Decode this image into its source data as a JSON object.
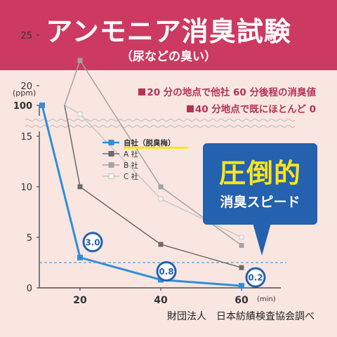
{
  "header": {
    "title": "アンモニア消臭試験",
    "subtitle": "（尿などの臭い）"
  },
  "notes": [
    "20 分の地点で他社 60 分後程の消臭値",
    "40 分地点で既にほとんど 0"
  ],
  "callout": {
    "big": "圧倒的",
    "small": "消臭スピード"
  },
  "source": "財団法人　日本紡績検査協会調べ",
  "colors": {
    "header_bg": "#cc3a61",
    "page_bg": "#f9e6e1",
    "callout_bg": "#2461ae",
    "callout_text": "#ffe51a",
    "own": "#2e8fd8",
    "a": "#6b6b6b",
    "b": "#a3a3a3",
    "c": "#c8c8c8"
  },
  "chart_data": {
    "type": "line",
    "x": [
      10,
      20,
      40,
      60
    ],
    "x_ticks": [
      "20",
      "40",
      "60"
    ],
    "x_unit": "(min)",
    "y_unit": "(ppm)",
    "y_ticks": [
      "0",
      "5",
      "10",
      "15",
      "20",
      "25",
      "100"
    ],
    "y_axis_break": [
      27,
      100
    ],
    "reference_line_y": 2.5,
    "series": [
      {
        "name": "自社（脱臭梅）",
        "values": [
          100,
          3.0,
          0.8,
          0.2
        ],
        "color": "#2e8fd8"
      },
      {
        "name": "A 社",
        "values": [
          100,
          10,
          4.3,
          2.0
        ],
        "color": "#6b6b6b"
      },
      {
        "name": "B 社",
        "values": [
          100,
          22.5,
          10,
          4.2
        ],
        "color": "#a3a3a3"
      },
      {
        "name": "C 社",
        "values": [
          100,
          17.2,
          8.8,
          5.0
        ],
        "color": "#c8c8c8"
      }
    ],
    "data_labels": [
      {
        "series": 0,
        "index": 1,
        "text": "3.0"
      },
      {
        "series": 0,
        "index": 2,
        "text": "0.8"
      },
      {
        "series": 0,
        "index": 3,
        "text": "0.2"
      }
    ],
    "legend_position": "upper-middle"
  }
}
